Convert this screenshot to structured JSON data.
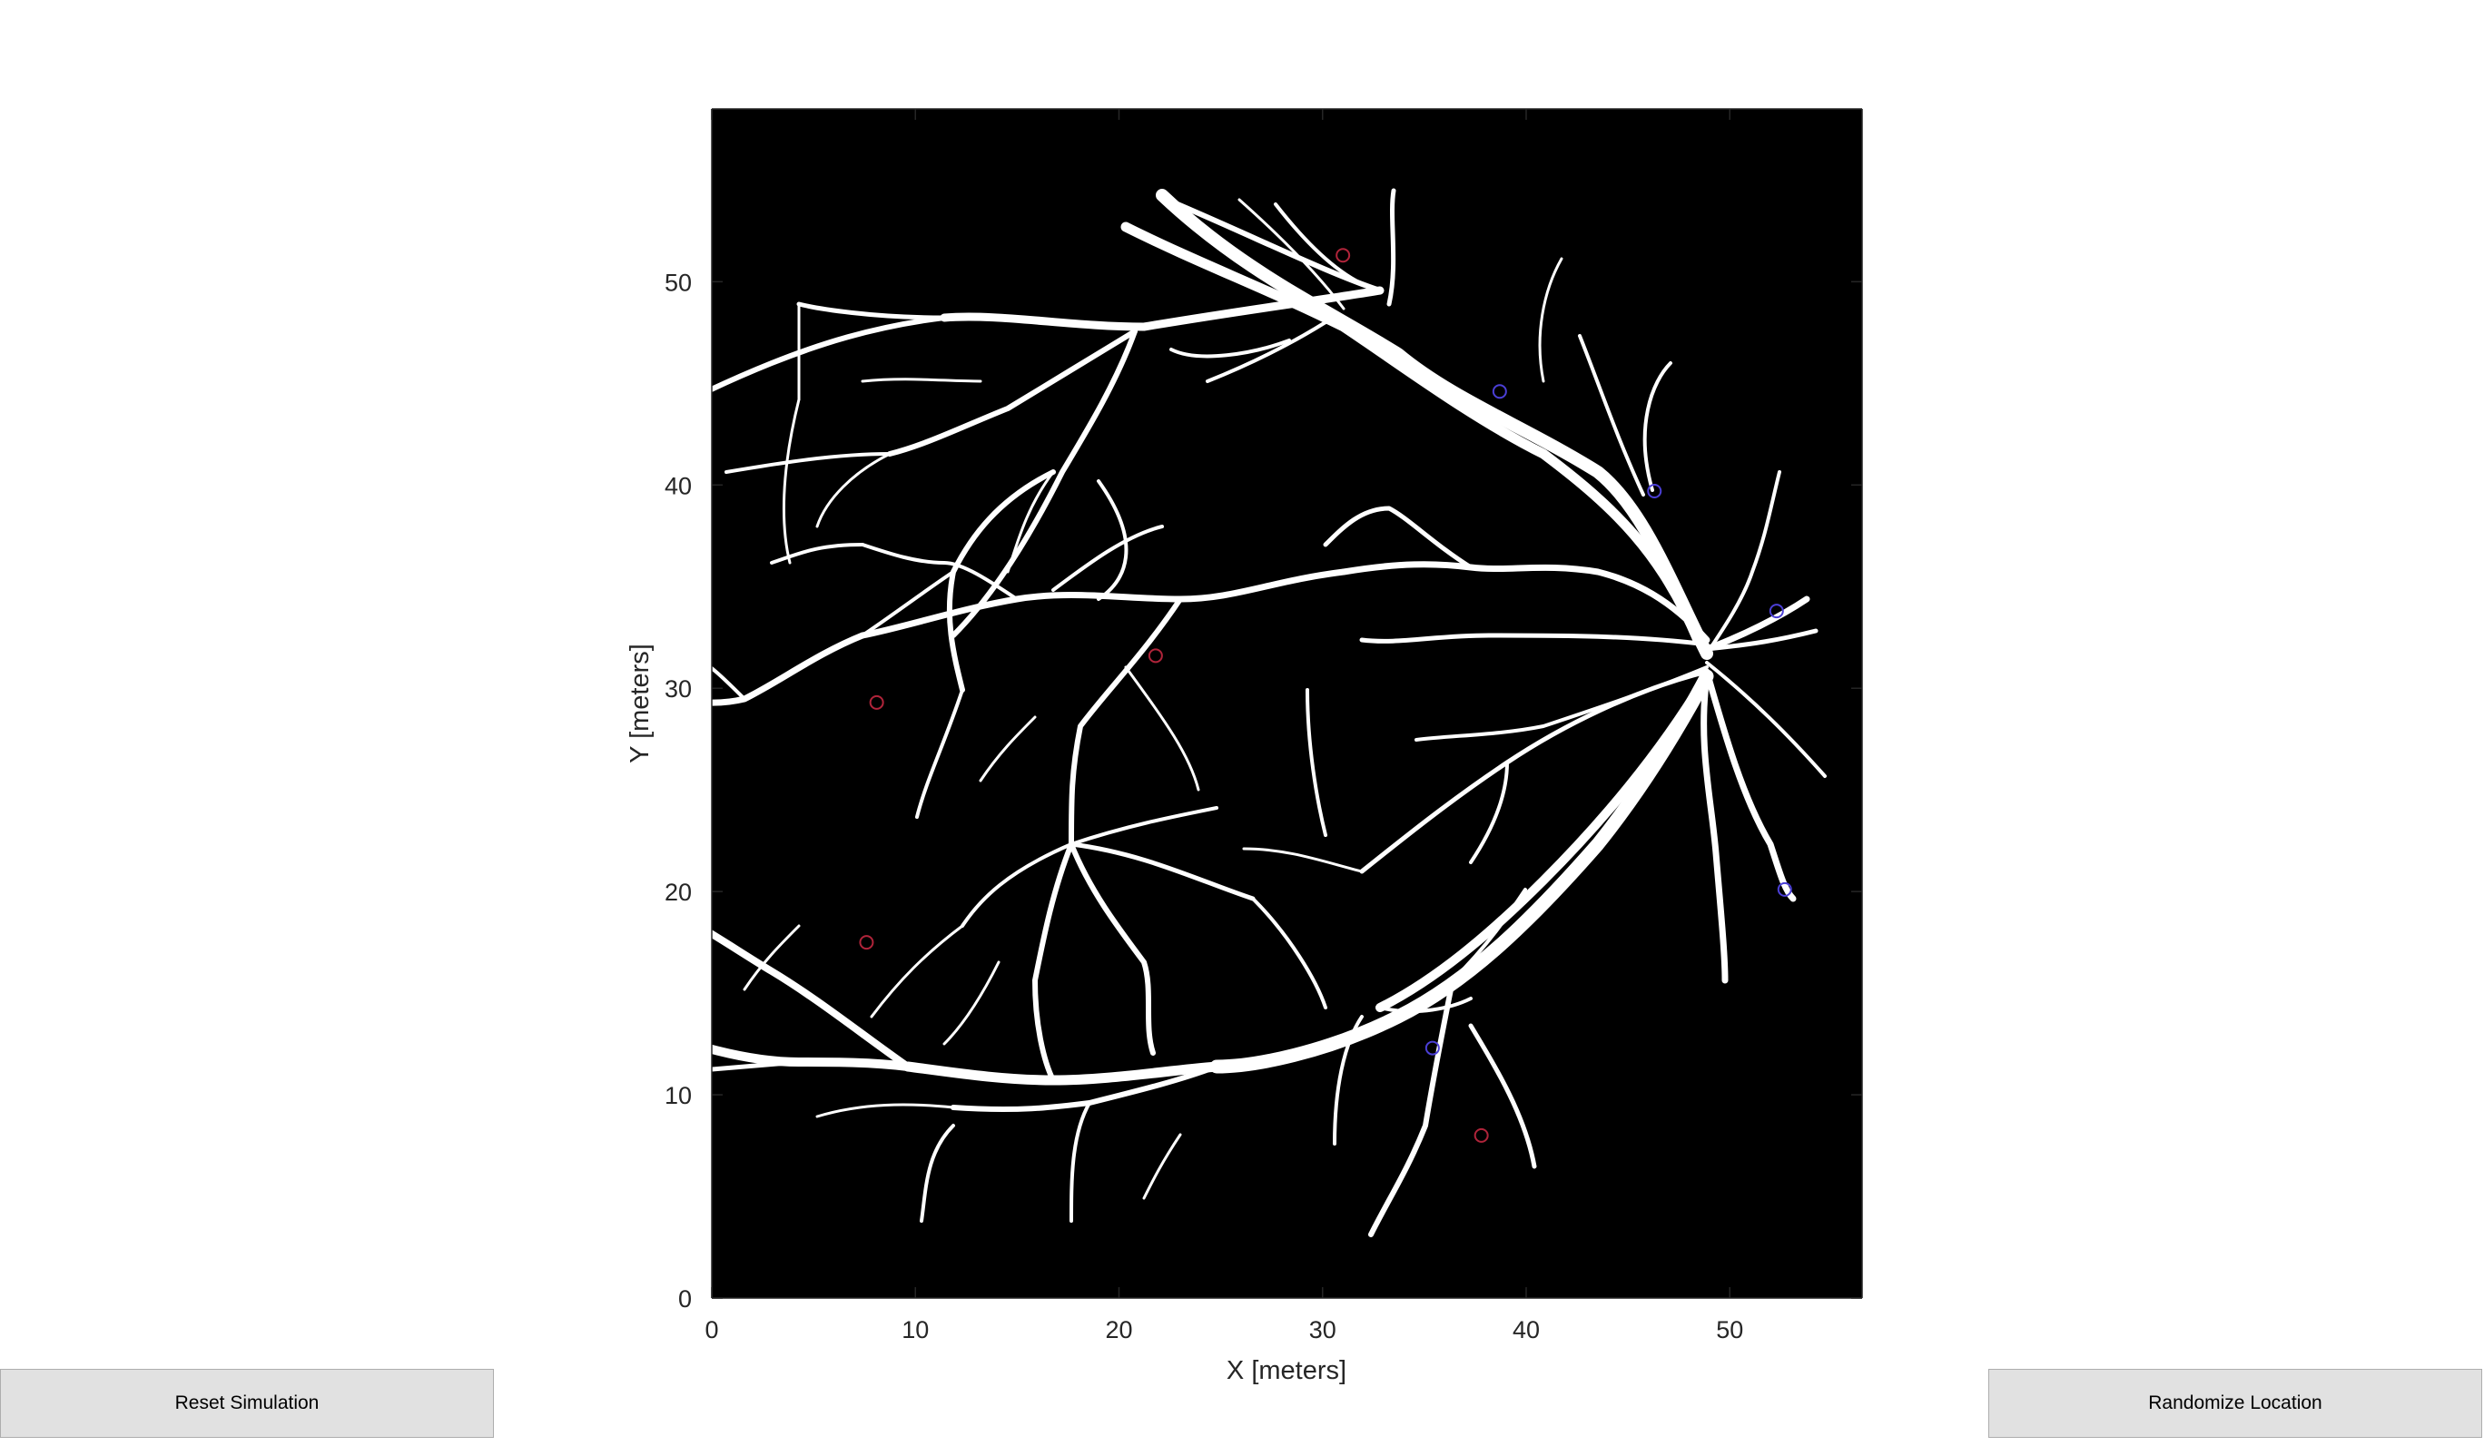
{
  "figure": {
    "axes": {
      "xlabel": "X [meters]",
      "ylabel": "Y [meters]",
      "xlim": [
        0,
        56.5
      ],
      "ylim": [
        0,
        58.5
      ],
      "xticks": [
        0,
        10,
        20,
        30,
        40,
        50
      ],
      "yticks": [
        0,
        10,
        20,
        30,
        40,
        50
      ],
      "image_content": "retinal vessel segmentation mask (white vessels on black background)",
      "background_color": "#000000",
      "vessel_color": "#ffffff",
      "markers": [
        {
          "x": 38.7,
          "y": 44.6,
          "color": "#4b3fd6"
        },
        {
          "x": 46.3,
          "y": 39.7,
          "color": "#4b3fd6"
        },
        {
          "x": 52.3,
          "y": 33.8,
          "color": "#4b3fd6"
        },
        {
          "x": 52.7,
          "y": 20.1,
          "color": "#4b3fd6"
        },
        {
          "x": 35.4,
          "y": 12.3,
          "color": "#4b3fd6"
        },
        {
          "x": 8.1,
          "y": 29.3,
          "color": "#b0243a"
        },
        {
          "x": 7.6,
          "y": 17.5,
          "color": "#b0243a"
        },
        {
          "x": 37.8,
          "y": 8.0,
          "color": "#b0243a"
        },
        {
          "x": 31.0,
          "y": 51.3,
          "color": "#b0243a"
        },
        {
          "x": 21.8,
          "y": 31.6,
          "color": "#b0243a"
        }
      ]
    }
  },
  "controls": {
    "reset_label": "Reset Simulation",
    "randomize_label": "Randomize Location"
  },
  "colors": {
    "button_bg": "#e1e1e1",
    "axis_text": "#262626"
  }
}
